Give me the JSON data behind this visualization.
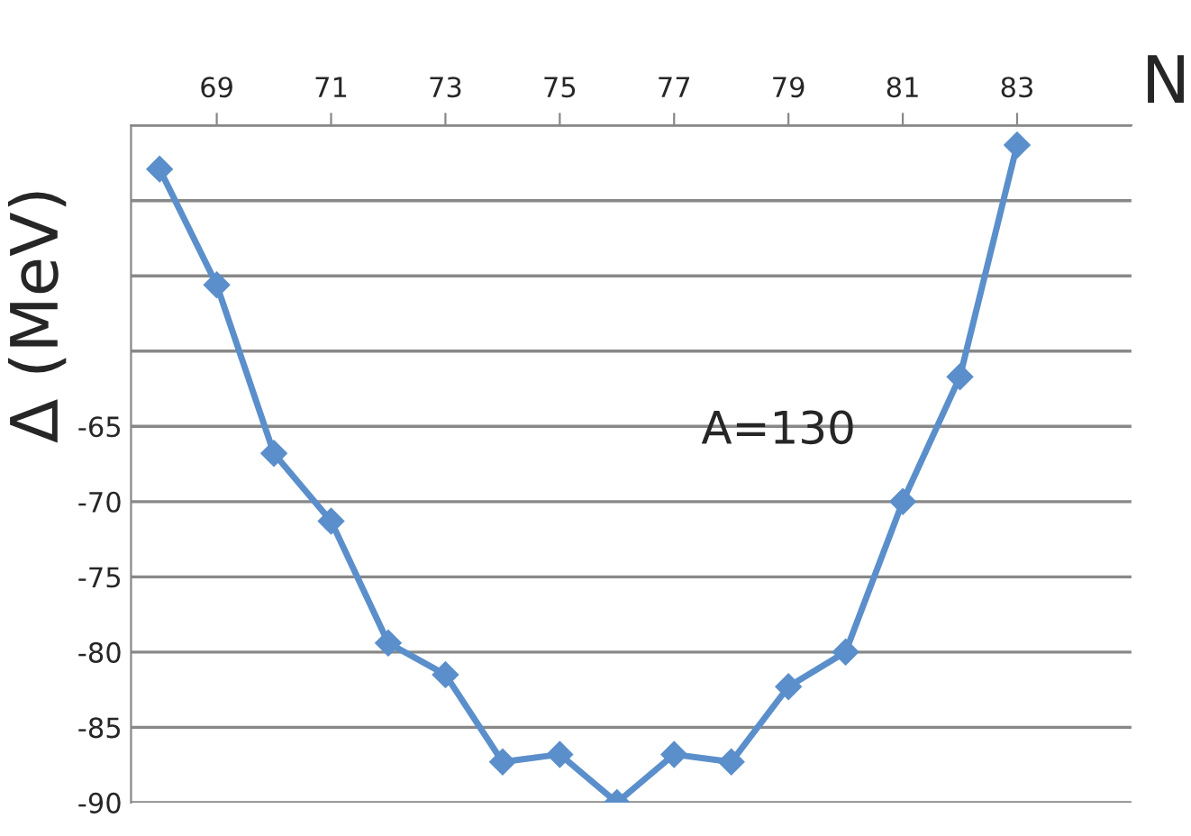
{
  "chart_data": {
    "type": "line",
    "xlabel": "N",
    "ylabel": "Δ (MeV)",
    "annotations": [
      "A=130"
    ],
    "x": [
      68,
      69,
      70,
      71,
      72,
      73,
      74,
      75,
      76,
      77,
      78,
      79,
      80,
      81,
      82,
      83
    ],
    "series": [
      {
        "color": "#5b8fcb",
        "values": [
          -47.9,
          -55.6,
          -66.8,
          -71.3,
          -79.4,
          -81.5,
          -87.3,
          -86.8,
          -90.0,
          -86.8,
          -87.3,
          -82.3,
          -80.0,
          -70.0,
          -61.7,
          -46.3
        ]
      }
    ],
    "xlim": [
      67.5,
      85
    ],
    "xticks": [
      69,
      71,
      73,
      75,
      77,
      79,
      81,
      83
    ],
    "ylim": [
      -90,
      -45
    ],
    "yticks": [
      -90,
      -85,
      -80,
      -75,
      -70,
      -65,
      {
        "value": -60,
        "label": null
      },
      {
        "value": -55,
        "label": null
      },
      {
        "value": -50,
        "label": null
      },
      {
        "value": -45,
        "label": null
      }
    ],
    "grid": "y",
    "marker": "diamond",
    "line_style": "solid"
  }
}
